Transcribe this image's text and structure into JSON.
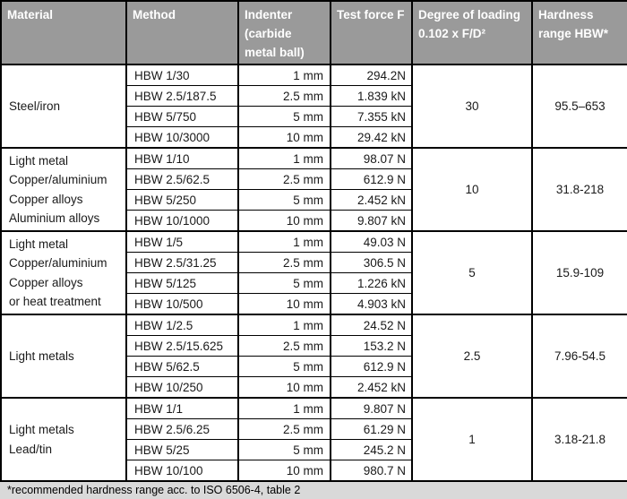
{
  "colors": {
    "header_bg": "#9a9a9a",
    "header_text": "#ffffff",
    "border": "#000000",
    "footnote_bg": "#d9d9d9"
  },
  "table": {
    "headers": {
      "material": "Material",
      "method": "Method",
      "indenter_lines": [
        "Indenter",
        "(carbide",
        "metal ball)"
      ],
      "test_force": "Test force F",
      "degree_lines": [
        "Degree of loading",
        "0.102 x F/D²"
      ],
      "hardness_lines": [
        "Hardness",
        "range HBW*"
      ]
    },
    "groups": [
      {
        "material_lines": [
          "Steel/iron"
        ],
        "degree": "30",
        "range": "95.5–653",
        "rows": [
          {
            "method": "HBW 1/30",
            "indenter": "1 mm",
            "force": "294.2N"
          },
          {
            "method": "HBW 2.5/187.5",
            "indenter": "2.5 mm",
            "force": "1.839 kN"
          },
          {
            "method": "HBW 5/750",
            "indenter": "5 mm",
            "force": "7.355 kN"
          },
          {
            "method": "HBW 10/3000",
            "indenter": "10 mm",
            "force": "29.42 kN"
          }
        ]
      },
      {
        "material_lines": [
          "Light metal",
          "Copper/aluminium",
          "Copper alloys",
          "Aluminium alloys"
        ],
        "degree": "10",
        "range": "31.8-218",
        "rows": [
          {
            "method": "HBW 1/10",
            "indenter": "1 mm",
            "force": "98.07 N"
          },
          {
            "method": "HBW 2.5/62.5",
            "indenter": "2.5 mm",
            "force": "612.9 N"
          },
          {
            "method": "HBW 5/250",
            "indenter": "5 mm",
            "force": "2.452 kN"
          },
          {
            "method": "HBW 10/1000",
            "indenter": "10 mm",
            "force": "9.807 kN"
          }
        ]
      },
      {
        "material_lines": [
          "Light metal",
          "Copper/aluminium",
          "Copper alloys",
          "or heat treatment"
        ],
        "degree": "5",
        "range": "15.9-109",
        "rows": [
          {
            "method": "HBW 1/5",
            "indenter": "1 mm",
            "force": "49.03 N"
          },
          {
            "method": "HBW 2.5/31.25",
            "indenter": "2.5 mm",
            "force": "306.5 N"
          },
          {
            "method": "HBW 5/125",
            "indenter": "5 mm",
            "force": "1.226 kN"
          },
          {
            "method": "HBW 10/500",
            "indenter": "10 mm",
            "force": "4.903 kN"
          }
        ]
      },
      {
        "material_lines": [
          "Light metals"
        ],
        "degree": "2.5",
        "range": "7.96-54.5",
        "rows": [
          {
            "method": "HBW 1/2.5",
            "indenter": "1 mm",
            "force": "24.52 N"
          },
          {
            "method": "HBW 2.5/15.625",
            "indenter": "2.5 mm",
            "force": "153.2 N"
          },
          {
            "method": "HBW 5/62.5",
            "indenter": "5 mm",
            "force": "612.9 N"
          },
          {
            "method": "HBW 10/250",
            "indenter": "10 mm",
            "force": "2.452 kN"
          }
        ]
      },
      {
        "material_lines": [
          "Light metals",
          "Lead/tin"
        ],
        "degree": "1",
        "range": "3.18-21.8",
        "rows": [
          {
            "method": "HBW 1/1",
            "indenter": "1 mm",
            "force": "9.807 N"
          },
          {
            "method": "HBW 2.5/6.25",
            "indenter": "2.5 mm",
            "force": "61.29 N"
          },
          {
            "method": "HBW 5/25",
            "indenter": "5 mm",
            "force": "245.2 N"
          },
          {
            "method": "HBW 10/100",
            "indenter": "10 mm",
            "force": "980.7 N"
          }
        ]
      }
    ],
    "footnote": "*recommended hardness range acc. to ISO 6506-4, table 2"
  }
}
